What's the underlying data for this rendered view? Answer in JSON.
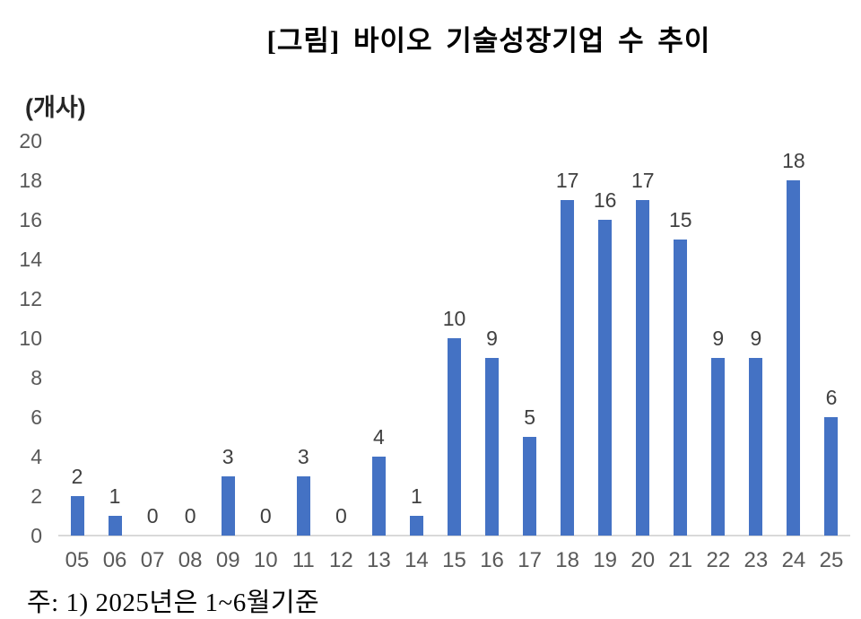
{
  "title": "[그림] 바이오 기술성장기업 수 추이",
  "unit_label": "(개사)",
  "footnote": "주: 1) 2025년은 1~6월기준",
  "colors": {
    "bar": "#4472C4",
    "axis_line": "#D9D9D9",
    "tick_label": "#595959",
    "data_label": "#404040"
  },
  "chart_data": {
    "type": "bar",
    "title": "[그림] 바이오 기술성장기업 수 추이",
    "categories": [
      "05",
      "06",
      "07",
      "08",
      "09",
      "10",
      "11",
      "12",
      "13",
      "14",
      "15",
      "16",
      "17",
      "18",
      "19",
      "20",
      "21",
      "22",
      "23",
      "24",
      "25"
    ],
    "values": [
      2,
      1,
      0,
      0,
      3,
      0,
      3,
      0,
      4,
      1,
      10,
      9,
      5,
      17,
      16,
      17,
      15,
      9,
      9,
      18,
      6
    ],
    "xlabel": "",
    "ylabel": "(개사)",
    "ylim": [
      0,
      20
    ],
    "ytick_step": 2,
    "grid": false,
    "legend": "none",
    "data_labels": true,
    "note": "주: 1) 2025년은 1~6월기준"
  }
}
